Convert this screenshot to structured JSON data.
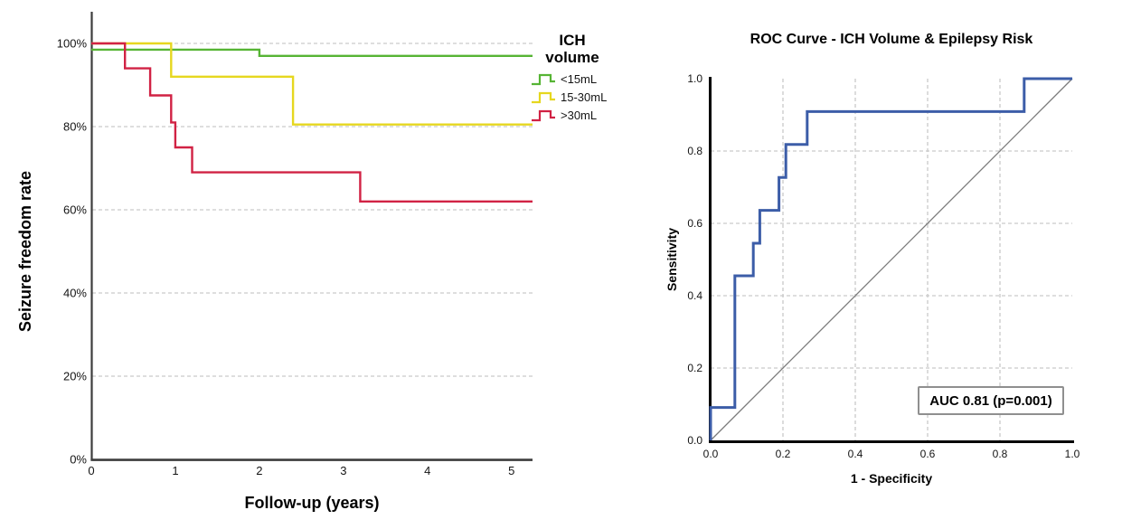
{
  "palette": {
    "background": "#ffffff",
    "gridline": "#c9c9c9",
    "km_axis": "#3d3d3d",
    "roc_axis": "#000000",
    "diagonal": "#7b7b7b"
  },
  "chart_data": [
    {
      "type": "line",
      "subtype": "kaplan-meier-step",
      "title": "",
      "xlabel": "Follow-up (years)",
      "ylabel": "Seizure freedom rate",
      "xlim": [
        0,
        5.25
      ],
      "ylim": [
        0,
        100
      ],
      "x_ticks": [
        0,
        1,
        2,
        3,
        4,
        5
      ],
      "x_tick_labels": [
        "0",
        "1",
        "2",
        "3",
        "4",
        "5"
      ],
      "y_ticks": [
        0,
        20,
        40,
        60,
        80,
        100
      ],
      "y_tick_labels": [
        "0%",
        "20%",
        "40%",
        "60%",
        "80%",
        "100%"
      ],
      "grid": "horizontal dashed",
      "legend_title": [
        "ICH",
        "volume"
      ],
      "legend_position": "top-right-outside",
      "series": [
        {
          "name": "<15mL",
          "color": "#56B434",
          "points": [
            [
              0,
              98.5
            ],
            [
              2.0,
              98.5
            ],
            [
              2.0,
              97
            ],
            [
              5.25,
              97
            ]
          ]
        },
        {
          "name": "15-30mL",
          "color": "#E6D71F",
          "points": [
            [
              0,
              100
            ],
            [
              0.95,
              100
            ],
            [
              0.95,
              92
            ],
            [
              2.4,
              92
            ],
            [
              2.4,
              80.5
            ],
            [
              5.25,
              80.5
            ]
          ]
        },
        {
          "name": ">30mL",
          "color": "#D12244",
          "points": [
            [
              0,
              100
            ],
            [
              0.4,
              100
            ],
            [
              0.4,
              94
            ],
            [
              0.7,
              94
            ],
            [
              0.7,
              87.5
            ],
            [
              0.95,
              87.5
            ],
            [
              0.95,
              81
            ],
            [
              1.0,
              81
            ],
            [
              1.0,
              75
            ],
            [
              1.2,
              75
            ],
            [
              1.2,
              69
            ],
            [
              3.2,
              69
            ],
            [
              3.2,
              62
            ],
            [
              5.25,
              62
            ]
          ]
        }
      ]
    },
    {
      "type": "line",
      "subtype": "roc-step",
      "title": "ROC Curve - ICH Volume & Epilepsy Risk",
      "xlabel": "1 - Specificity",
      "ylabel": "Sensitivity",
      "xlim": [
        0,
        1
      ],
      "ylim": [
        0,
        1
      ],
      "x_ticks": [
        0,
        0.2,
        0.4,
        0.6,
        0.8,
        1.0
      ],
      "x_tick_labels": [
        "0.0",
        "0.2",
        "0.4",
        "0.6",
        "0.8",
        "1.0"
      ],
      "y_ticks": [
        0,
        0.2,
        0.4,
        0.6,
        0.8,
        1.0
      ],
      "y_tick_labels": [
        "0.0",
        "0.2",
        "0.4",
        "0.6",
        "0.8",
        "1.0"
      ],
      "grid": "both dashed",
      "annotation": "AUC 0.81 (p=0.001)",
      "series": [
        {
          "name": "ROC curve",
          "color": "#3C5DA8",
          "points": [
            [
              0,
              0
            ],
            [
              0,
              0.091
            ],
            [
              0.067,
              0.091
            ],
            [
              0.067,
              0.455
            ],
            [
              0.118,
              0.455
            ],
            [
              0.118,
              0.545
            ],
            [
              0.136,
              0.545
            ],
            [
              0.136,
              0.636
            ],
            [
              0.189,
              0.636
            ],
            [
              0.189,
              0.727
            ],
            [
              0.208,
              0.727
            ],
            [
              0.208,
              0.818
            ],
            [
              0.267,
              0.818
            ],
            [
              0.267,
              0.909
            ],
            [
              0.867,
              0.909
            ],
            [
              0.867,
              1.0
            ],
            [
              1.0,
              1.0
            ]
          ]
        }
      ],
      "reference_line": {
        "name": "chance diagonal",
        "color": "#7b7b7b",
        "points": [
          [
            0,
            0
          ],
          [
            1,
            1
          ]
        ]
      }
    }
  ]
}
